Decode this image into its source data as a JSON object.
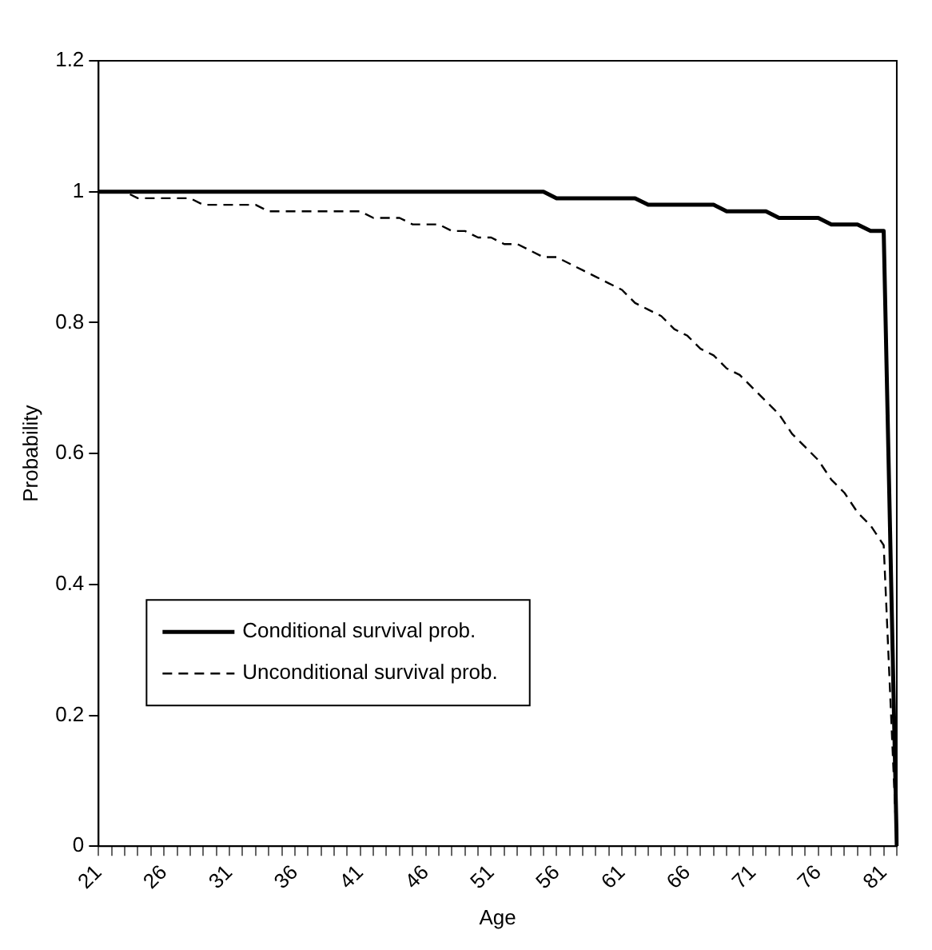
{
  "chart_data": {
    "type": "line",
    "xlabel": "Age",
    "ylabel": "Probability",
    "categories": [
      "21",
      null,
      null,
      null,
      null,
      "26",
      null,
      null,
      null,
      null,
      "31",
      null,
      null,
      null,
      null,
      "36",
      null,
      null,
      null,
      null,
      "41",
      null,
      null,
      null,
      null,
      "46",
      null,
      null,
      null,
      null,
      "51",
      null,
      null,
      null,
      null,
      "56",
      null,
      null,
      null,
      null,
      "61",
      null,
      null,
      null,
      null,
      "66",
      null,
      null,
      null,
      null,
      "71",
      null,
      null,
      null,
      null,
      "76",
      null,
      null,
      null,
      null,
      "81",
      null
    ],
    "series": [
      {
        "name": "Conditional survival prob.",
        "color": "#000000",
        "line_style": "solid",
        "values": [
          1.0,
          1.0,
          1.0,
          1.0,
          1.0,
          1.0,
          1.0,
          1.0,
          1.0,
          1.0,
          1.0,
          1.0,
          1.0,
          1.0,
          1.0,
          1.0,
          1.0,
          1.0,
          1.0,
          1.0,
          1.0,
          1.0,
          1.0,
          1.0,
          1.0,
          1.0,
          1.0,
          1.0,
          1.0,
          1.0,
          1.0,
          1.0,
          1.0,
          1.0,
          1.0,
          0.99,
          0.99,
          0.99,
          0.99,
          0.99,
          0.99,
          0.99,
          0.98,
          0.98,
          0.98,
          0.98,
          0.98,
          0.98,
          0.97,
          0.97,
          0.97,
          0.97,
          0.96,
          0.96,
          0.96,
          0.96,
          0.95,
          0.95,
          0.95,
          0.94,
          0.94,
          0
        ]
      },
      {
        "name": "Unconditional survival prob.",
        "color": "#000000",
        "line_style": "dashed",
        "values": [
          1.0,
          1.0,
          1.0,
          0.99,
          0.99,
          0.99,
          0.99,
          0.99,
          0.98,
          0.98,
          0.98,
          0.98,
          0.98,
          0.97,
          0.97,
          0.97,
          0.97,
          0.97,
          0.97,
          0.97,
          0.97,
          0.96,
          0.96,
          0.96,
          0.95,
          0.95,
          0.95,
          0.94,
          0.94,
          0.93,
          0.93,
          0.92,
          0.92,
          0.91,
          0.9,
          0.9,
          0.89,
          0.88,
          0.87,
          0.86,
          0.85,
          0.83,
          0.82,
          0.81,
          0.79,
          0.78,
          0.76,
          0.75,
          0.73,
          0.72,
          0.7,
          0.68,
          0.66,
          0.63,
          0.61,
          0.59,
          0.56,
          0.54,
          0.51,
          0.49,
          0.46,
          0
        ]
      }
    ],
    "ylim": [
      0,
      1.2
    ],
    "yticks": [
      0,
      0.2,
      0.4,
      0.6,
      0.8,
      1,
      1.2
    ],
    "grid": false,
    "legend": "bottom left",
    "marker": "none"
  }
}
